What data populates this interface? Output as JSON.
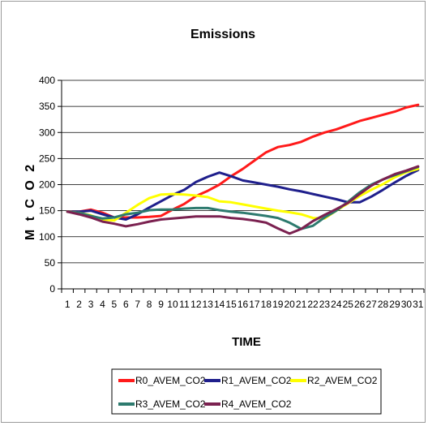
{
  "chart_data": {
    "type": "line",
    "title": "Emissions",
    "xlabel": "TIME",
    "ylabel": "M t C O 2",
    "ylim": [
      0,
      400
    ],
    "yticks": [
      0,
      50,
      100,
      150,
      200,
      250,
      300,
      350,
      400
    ],
    "x": [
      1,
      2,
      3,
      4,
      5,
      6,
      7,
      8,
      9,
      10,
      11,
      12,
      13,
      14,
      15,
      16,
      17,
      18,
      19,
      20,
      21,
      22,
      23,
      24,
      25,
      26,
      27,
      28,
      29,
      30,
      31
    ],
    "grid": "horizontal",
    "legend_position": "bottom",
    "series": [
      {
        "name": "R0_AVEM_CO2",
        "color": "#ff1a1a",
        "values": [
          148,
          148,
          152,
          146,
          137,
          137,
          137,
          138,
          140,
          152,
          163,
          178,
          188,
          200,
          216,
          230,
          246,
          262,
          272,
          276,
          282,
          292,
          300,
          306,
          314,
          322,
          328,
          334,
          340,
          348,
          353
        ]
      },
      {
        "name": "R1_AVEM_CO2",
        "color": "#1f1f8c",
        "values": [
          148,
          148,
          150,
          143,
          137,
          133,
          143,
          156,
          168,
          180,
          190,
          205,
          215,
          223,
          216,
          208,
          204,
          200,
          196,
          191,
          187,
          182,
          177,
          172,
          166,
          166,
          177,
          190,
          204,
          217,
          228
        ]
      },
      {
        "name": "R2_AVEM_CO2",
        "color": "#ffff00",
        "values": [
          148,
          146,
          141,
          133,
          131,
          146,
          161,
          174,
          181,
          182,
          181,
          179,
          176,
          168,
          166,
          162,
          158,
          154,
          150,
          147,
          143,
          136,
          135,
          150,
          164,
          178,
          190,
          201,
          214,
          224,
          230
        ]
      },
      {
        "name": "R3_AVEM_CO2",
        "color": "#2d7a6e",
        "values": [
          148,
          146,
          140,
          135,
          137,
          143,
          146,
          151,
          152,
          152,
          154,
          155,
          155,
          151,
          148,
          146,
          143,
          140,
          136,
          127,
          115,
          121,
          137,
          150,
          167,
          185,
          200,
          210,
          218,
          226,
          234
        ]
      },
      {
        "name": "R4_AVEM_CO2",
        "color": "#7b2150",
        "values": [
          148,
          143,
          137,
          129,
          125,
          120,
          124,
          129,
          133,
          135,
          137,
          139,
          139,
          139,
          136,
          134,
          131,
          127,
          116,
          106,
          115,
          130,
          142,
          153,
          165,
          182,
          198,
          210,
          220,
          227,
          235
        ]
      }
    ]
  }
}
